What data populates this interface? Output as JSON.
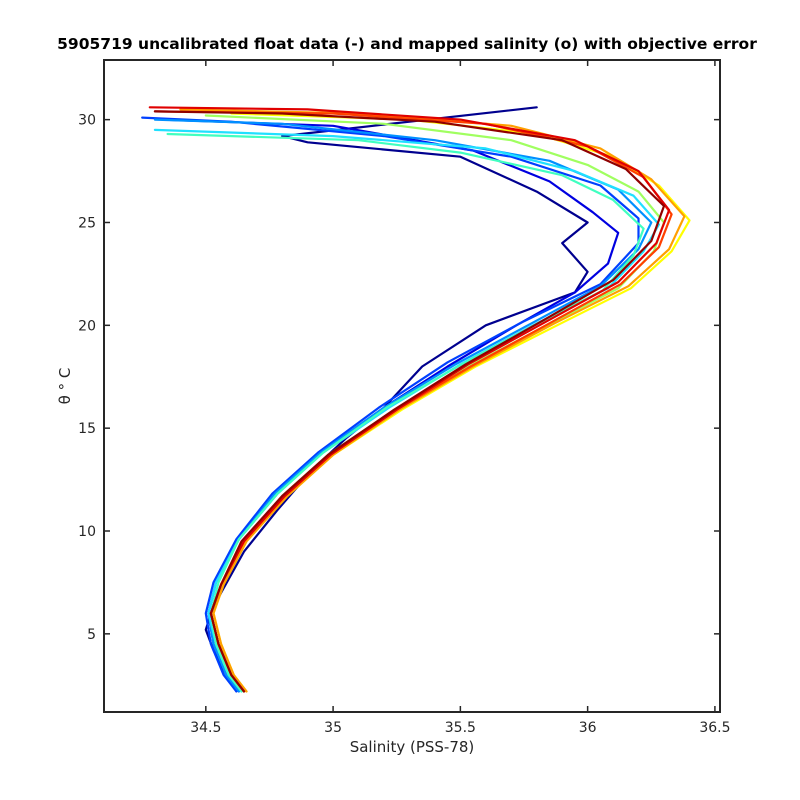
{
  "chart_data": {
    "type": "line",
    "title": "5905719 uncalibrated float data (-) and mapped salinity (o) with objective error",
    "xlabel": "Salinity (PSS-78)",
    "ylabel": "θ ° C",
    "xlim": [
      34.1,
      36.52
    ],
    "ylim": [
      1.2,
      32.9
    ],
    "xticks": [
      34.5,
      35,
      35.5,
      36,
      36.5
    ],
    "xtick_labels": [
      "34.5",
      "35",
      "35.5",
      "36",
      "36.5"
    ],
    "yticks": [
      5,
      10,
      15,
      20,
      25,
      30
    ],
    "ytick_labels": [
      "5",
      "10",
      "15",
      "20",
      "25",
      "30"
    ],
    "grid": false,
    "legend": "none",
    "colormap": "jet",
    "series": [
      {
        "color": "#00008f",
        "x": [
          35.8,
          34.8,
          34.9,
          35.5,
          35.8,
          36.0,
          35.9,
          36.0,
          35.95,
          35.6,
          35.35,
          35.2,
          35.05,
          34.92,
          34.78,
          34.65,
          34.56,
          34.52,
          34.5,
          34.53,
          34.58,
          34.62
        ],
        "y": [
          30.6,
          29.2,
          28.9,
          28.2,
          26.5,
          25.0,
          24.0,
          22.6,
          21.6,
          20.0,
          18.0,
          16.0,
          14.5,
          13.0,
          11.0,
          9.0,
          7.0,
          6.0,
          5.2,
          4.2,
          3.0,
          2.2
        ]
      },
      {
        "color": "#0000e0",
        "x": [
          34.33,
          35.0,
          35.55,
          35.85,
          36.02,
          36.12,
          36.08,
          35.95,
          35.72,
          35.45,
          35.2,
          34.95,
          34.78,
          34.63,
          34.54,
          34.51,
          34.53,
          34.58,
          34.63
        ],
        "y": [
          30.0,
          29.7,
          28.5,
          27.0,
          25.5,
          24.5,
          23.0,
          21.6,
          20.0,
          18.0,
          16.0,
          13.8,
          11.8,
          9.6,
          7.5,
          6.0,
          4.5,
          3.0,
          2.2
        ]
      },
      {
        "color": "#0040ff",
        "x": [
          34.25,
          34.6,
          35.2,
          35.7,
          36.05,
          36.2,
          36.2,
          36.05,
          35.75,
          35.45,
          35.18,
          34.94,
          34.76,
          34.62,
          34.53,
          34.5,
          34.52,
          34.57,
          34.62
        ],
        "y": [
          30.1,
          29.9,
          29.2,
          28.2,
          26.8,
          25.2,
          24.0,
          22.0,
          20.2,
          18.2,
          16.0,
          13.8,
          11.8,
          9.6,
          7.5,
          6.0,
          4.5,
          3.0,
          2.2
        ]
      },
      {
        "color": "#0090ff",
        "x": [
          34.3,
          34.8,
          35.4,
          35.85,
          36.12,
          36.25,
          36.2,
          36.05,
          35.78,
          35.48,
          35.2,
          34.95,
          34.77,
          34.63,
          34.54,
          34.51,
          34.53,
          34.58,
          34.63
        ],
        "y": [
          30.0,
          29.8,
          29.0,
          28.0,
          26.6,
          25.0,
          23.7,
          21.9,
          20.1,
          18.1,
          16.0,
          13.8,
          11.8,
          9.6,
          7.5,
          6.0,
          4.5,
          3.0,
          2.2
        ]
      },
      {
        "color": "#20e0ff",
        "x": [
          34.3,
          35.0,
          35.6,
          35.95,
          36.18,
          36.28,
          36.22,
          36.08,
          35.8,
          35.5,
          35.22,
          34.96,
          34.78,
          34.63,
          34.54,
          34.51,
          34.54,
          34.59,
          34.64
        ],
        "y": [
          29.5,
          29.2,
          28.6,
          27.5,
          26.3,
          24.9,
          23.6,
          21.8,
          20.1,
          18.1,
          16.0,
          13.8,
          11.8,
          9.6,
          7.5,
          6.0,
          4.5,
          3.0,
          2.2
        ]
      },
      {
        "color": "#40ffc0",
        "x": [
          34.35,
          35.1,
          35.5,
          35.9,
          36.1,
          36.22,
          36.18,
          36.06,
          35.79,
          35.49,
          35.21,
          34.96,
          34.78,
          34.63,
          34.55,
          34.52,
          34.54,
          34.59,
          34.64
        ],
        "y": [
          29.3,
          29.0,
          28.4,
          27.3,
          26.1,
          24.7,
          23.4,
          21.7,
          20.0,
          18.0,
          16.0,
          13.8,
          11.8,
          9.6,
          7.5,
          6.0,
          4.5,
          3.0,
          2.2
        ]
      },
      {
        "color": "#a0ff60",
        "x": [
          34.5,
          35.2,
          35.7,
          36.0,
          36.2,
          36.3,
          36.26,
          36.12,
          35.84,
          35.53,
          35.24,
          34.98,
          34.8,
          34.65,
          34.56,
          34.52,
          34.55,
          34.6,
          34.65
        ],
        "y": [
          30.2,
          29.8,
          29.0,
          27.8,
          26.5,
          25.0,
          23.6,
          21.8,
          20.0,
          18.0,
          15.9,
          13.7,
          11.7,
          9.5,
          7.4,
          6.0,
          4.5,
          3.0,
          2.2
        ]
      },
      {
        "color": "#ffff00",
        "x": [
          34.6,
          35.3,
          35.8,
          36.1,
          36.28,
          36.4,
          36.33,
          36.17,
          35.88,
          35.56,
          35.27,
          35.0,
          34.82,
          34.66,
          34.57,
          34.53,
          34.56,
          34.61,
          34.66
        ],
        "y": [
          30.3,
          30.0,
          29.3,
          28.2,
          26.8,
          25.1,
          23.6,
          21.8,
          20.0,
          18.0,
          15.9,
          13.7,
          11.7,
          9.5,
          7.4,
          6.0,
          4.5,
          3.0,
          2.2
        ]
      },
      {
        "color": "#ffa000",
        "x": [
          34.4,
          35.1,
          35.7,
          36.05,
          36.25,
          36.38,
          36.32,
          36.16,
          35.87,
          35.55,
          35.26,
          35.0,
          34.82,
          34.66,
          34.57,
          34.53,
          34.56,
          34.61,
          34.66
        ],
        "y": [
          30.5,
          30.3,
          29.7,
          28.6,
          27.1,
          25.3,
          23.7,
          21.9,
          20.1,
          18.0,
          15.9,
          13.7,
          11.7,
          9.5,
          7.4,
          6.0,
          4.5,
          3.0,
          2.2
        ]
      },
      {
        "color": "#ff4000",
        "x": [
          34.3,
          35.0,
          35.6,
          36.0,
          36.22,
          36.33,
          36.28,
          36.13,
          35.85,
          35.54,
          35.25,
          34.99,
          34.81,
          34.65,
          34.56,
          34.52,
          34.55,
          34.6,
          34.65
        ],
        "y": [
          30.4,
          30.3,
          29.8,
          28.7,
          27.2,
          25.4,
          23.8,
          22.0,
          20.1,
          18.0,
          15.9,
          13.7,
          11.7,
          9.5,
          7.4,
          6.0,
          4.5,
          3.0,
          2.2
        ]
      },
      {
        "color": "#e00000",
        "x": [
          34.28,
          34.9,
          35.5,
          35.95,
          36.2,
          36.32,
          36.27,
          36.12,
          35.84,
          35.53,
          35.25,
          34.99,
          34.81,
          34.65,
          34.56,
          34.52,
          34.55,
          34.6,
          34.65
        ],
        "y": [
          30.6,
          30.5,
          30.0,
          29.0,
          27.5,
          25.6,
          24.0,
          22.1,
          20.2,
          18.1,
          15.9,
          13.7,
          11.7,
          9.5,
          7.4,
          6.0,
          4.5,
          3.0,
          2.2
        ]
      },
      {
        "color": "#900000",
        "x": [
          34.3,
          34.8,
          35.4,
          35.9,
          36.15,
          36.3,
          36.25,
          36.1,
          35.82,
          35.52,
          35.24,
          34.98,
          34.8,
          34.64,
          34.56,
          34.52,
          34.55,
          34.6,
          34.65
        ],
        "y": [
          30.4,
          30.3,
          29.9,
          29.0,
          27.6,
          25.8,
          24.1,
          22.2,
          20.2,
          18.1,
          15.9,
          13.7,
          11.7,
          9.5,
          7.4,
          6.0,
          4.5,
          3.0,
          2.2
        ]
      }
    ]
  }
}
